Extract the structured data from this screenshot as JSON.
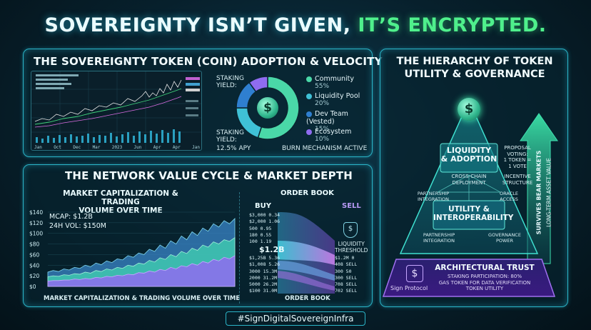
{
  "headline": {
    "part1": "SOVEREIGNTY ISN’T GIVEN, ",
    "part2": "IT’S ENCRYPTED."
  },
  "colors": {
    "accent_cyan": "#2bb5c8",
    "green": "#4ff08c",
    "purple": "#9b6cf0",
    "community": "#4ad8a8",
    "liquidity": "#3fc1d6",
    "dev": "#2f7fd0",
    "ecosystem": "#8f6cf0"
  },
  "adoption": {
    "title": "THE SOVEREIGNTY TOKEN (COIN) ADOPTION & VELOCITY",
    "staking_yield_label": "STAKING YIELD:",
    "staking_yield_bottom": "STAKING YIELD:",
    "staking_apy": "12.5% APY",
    "burn": "BURN MECHANISM ACTIVE",
    "chart_axis": [
      "Jan",
      "Oct",
      "Dec",
      "Mar",
      "2023",
      "Jun",
      "Apr",
      "Apr",
      "Jan"
    ],
    "coin_icon": "dollar-coin-icon"
  },
  "chart_data": [
    {
      "type": "pie",
      "title": "",
      "categories": [
        "Community",
        "Liquidity Pool",
        "Dev Team (Vested)",
        "Ecosystem"
      ],
      "values": [
        55,
        20,
        15,
        10
      ],
      "labels": [
        "55%",
        "20%",
        "15%",
        "10%"
      ],
      "legend": "right"
    },
    {
      "type": "area",
      "title": "MARKET CAPITALIZATION & TRADING VOLUME OVER TIME",
      "xlabel": "MARKET CAPITALIZATION & TRADING VOLUME OVER TIME",
      "ylabel": "",
      "y_ticks": [
        "$140",
        "$120",
        "$100",
        "$80",
        "$60",
        "$40",
        "$20",
        "$0"
      ],
      "ylim": [
        0,
        140
      ],
      "x": [
        0,
        1,
        2,
        3,
        4,
        5,
        6,
        7,
        8,
        9,
        10,
        11,
        12,
        13,
        14,
        15,
        16,
        17,
        18,
        19,
        20,
        21,
        22,
        23,
        24,
        25,
        26,
        27,
        28,
        29,
        30,
        31,
        32,
        33,
        34,
        35
      ],
      "series": [
        {
          "values": [
            27,
            30,
            28,
            33,
            31,
            36,
            34,
            40,
            37,
            44,
            41,
            48,
            45,
            52,
            50,
            58,
            55,
            63,
            60,
            70,
            66,
            78,
            72,
            86,
            80,
            95,
            88,
            103,
            96,
            110,
            104,
            118,
            112,
            124,
            118,
            128
          ]
        },
        {
          "values": [
            18,
            20,
            19,
            22,
            21,
            24,
            23,
            27,
            25,
            30,
            28,
            33,
            31,
            36,
            34,
            40,
            38,
            44,
            42,
            49,
            46,
            54,
            51,
            60,
            56,
            66,
            62,
            72,
            68,
            78,
            74,
            84,
            80,
            88,
            85,
            92
          ]
        },
        {
          "values": [
            10,
            11,
            11,
            12,
            12,
            14,
            13,
            15,
            14,
            17,
            16,
            19,
            18,
            21,
            20,
            23,
            22,
            26,
            25,
            29,
            27,
            32,
            30,
            36,
            33,
            39,
            37,
            43,
            40,
            47,
            44,
            51,
            48,
            55,
            52,
            58
          ]
        }
      ],
      "annotations": [
        "MCAP: $1.2B",
        "24H VOL: $150M"
      ],
      "grid": true
    }
  ],
  "network": {
    "title": "THE NETWORK VALUE CYCLE & MARKET DEPTH",
    "mcap_title_1": "MARKET CAPITALIZATION & TRADING",
    "mcap_title_2": "VOLUME OVER TIME",
    "mcap": "MCAP: $1.2B",
    "vol": "24H VOL: $150M",
    "x_caption": "MARKET CAPITALIZATION & TRADING VOLUME OVER TIME"
  },
  "orderbook": {
    "title": "ORDER BOOK",
    "buy": "BUY",
    "sell": "SELL",
    "mid_price": "$1.2B",
    "liquidity_1": "LIQUIDITY",
    "liquidity_2": "THRESHOLD",
    "buy_rows": [
      "$3,000   0.34",
      "$2,000   1.06",
      "500   0.95",
      "180   0.55",
      "100   1.19"
    ],
    "lower_rows": [
      "$1,25B   5.36",
      "$1,008   5.26",
      "3000   15.3M",
      "2000   31.2M",
      "5000   26.2M",
      "$100   31.0M"
    ],
    "sell_rows": [
      "$1.2M   0",
      "408   SELL",
      "300   50",
      "300   SELL",
      "708   SELL",
      "702   SELL"
    ],
    "caption": "ORDER BOOK"
  },
  "hierarchy": {
    "title_1": "THE HIERARCHY OF TOKEN",
    "title_2": "UTILITY & GOVERNANCE",
    "tier1_title_1": "LIQUIDITY",
    "tier1_title_2": "& ADOPTION",
    "tier1_sub_1": "CROSS-CHAIN",
    "tier1_sub_2": "DEPLOYMENT",
    "proposal_1": "PROPOSAL",
    "proposal_2": "VOTING:",
    "proposal_3": "1 TOKEN =",
    "proposal_4": "1 VOTE",
    "incentive_1": "INCENTIVE",
    "incentive_2": "STRUCTURE",
    "partner_1": "PARTNERSHIP",
    "partner_2": "INTEGRATION",
    "oracle_1": "ORACLE",
    "oracle_2": "ACCESS",
    "tier2_title_1": "UTILITY &",
    "tier2_title_2": "INTEROPERABILITY",
    "partner2_1": "PARTNERSHIP",
    "partner2_2": "INTEGRATION",
    "gov_1": "GOVERNANCE",
    "gov_2": "POWER",
    "tier3_title": "ARCHITECTURAL TRUST",
    "tier3_sub_1": "STAKING PARTICIPATION: 80%",
    "tier3_sub_2": "GAS TOKEN FOR DATA VERIFICATION",
    "tier3_sub_3": "TOKEN UTILITY",
    "sign_protocol": "Sign Protocol",
    "arrow_text_1": "SURVIVES BEAR MARKETS",
    "arrow_text_2": "LONG-TERM ASSET VALUE"
  },
  "footer": {
    "hashtag": "#SignDigitalSovereignInfra"
  }
}
